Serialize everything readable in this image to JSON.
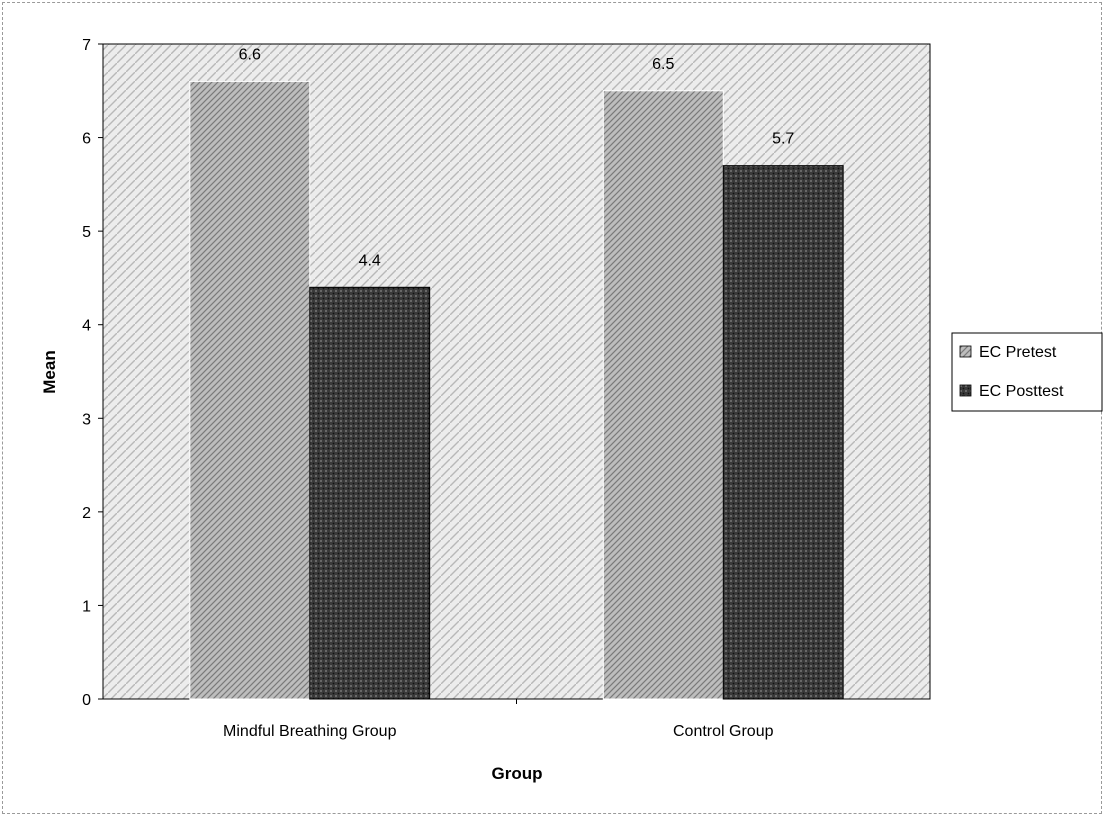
{
  "chart_data": {
    "type": "bar",
    "categories": [
      "Mindful Breathing Group",
      "Control Group"
    ],
    "series": [
      {
        "name": "EC Pretest",
        "values": [
          6.6,
          6.5
        ],
        "color": "#9a9a9a"
      },
      {
        "name": "EC Posttest",
        "values": [
          4.4,
          5.7
        ],
        "color": "#2a2a2a"
      }
    ],
    "data_labels": [
      "6.6",
      "4.4",
      "6.5",
      "5.7"
    ],
    "xlabel": "Group",
    "ylabel": "Mean",
    "ylim": [
      0,
      7
    ],
    "yticks": [
      "0",
      "1",
      "2",
      "3",
      "4",
      "5",
      "6",
      "7"
    ],
    "grid": false,
    "legend_position": "right"
  }
}
